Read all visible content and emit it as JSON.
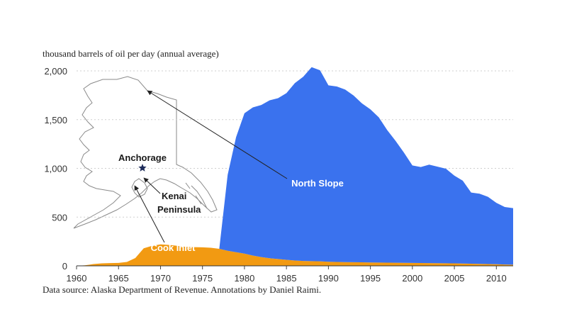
{
  "page": {
    "unit_label": "thousand barrels of oil per day (annual average)",
    "source_note": "Data source: Alaska Department of Revenue. Annotations by Daniel Raimi."
  },
  "colors": {
    "north_slope": "#3a72ee",
    "cook_inlet": "#f29a12",
    "text": "#222222"
  },
  "chart_data": {
    "type": "area",
    "stacked": true,
    "title": "",
    "xlabel": "",
    "ylabel": "thousand barrels of oil per day (annual average)",
    "xlim": [
      1960,
      2012
    ],
    "ylim": [
      0,
      2000
    ],
    "x_ticks": [
      1960,
      1965,
      1970,
      1975,
      1980,
      1985,
      1990,
      1995,
      2000,
      2005,
      2010
    ],
    "y_ticks": [
      0,
      500,
      1000,
      1500,
      2000
    ],
    "y_tick_labels": [
      "0",
      "500",
      "1,000",
      "1,500",
      "2,000"
    ],
    "grid": false,
    "x": [
      1960,
      1961,
      1962,
      1963,
      1964,
      1965,
      1966,
      1967,
      1968,
      1969,
      1970,
      1971,
      1972,
      1973,
      1974,
      1975,
      1976,
      1977,
      1978,
      1979,
      1980,
      1981,
      1982,
      1983,
      1984,
      1985,
      1986,
      1987,
      1988,
      1989,
      1990,
      1991,
      1992,
      1993,
      1994,
      1995,
      1996,
      1997,
      1998,
      1999,
      2000,
      2001,
      2002,
      2003,
      2004,
      2005,
      2006,
      2007,
      2008,
      2009,
      2010,
      2011,
      2012
    ],
    "series": [
      {
        "name": "Cook Inlet",
        "color": "#f29a12",
        "values": [
          0,
          5,
          18,
          25,
          28,
          30,
          40,
          80,
          180,
          205,
          220,
          215,
          205,
          195,
          192,
          190,
          185,
          175,
          155,
          140,
          125,
          105,
          90,
          78,
          70,
          62,
          55,
          50,
          48,
          46,
          42,
          40,
          38,
          37,
          36,
          35,
          34,
          33,
          32,
          31,
          30,
          29,
          28,
          27,
          26,
          25,
          24,
          22,
          20,
          18,
          16,
          14,
          12
        ]
      },
      {
        "name": "North Slope",
        "color": "#3a72ee",
        "values": [
          0,
          0,
          0,
          0,
          0,
          0,
          0,
          0,
          0,
          0,
          0,
          0,
          0,
          0,
          0,
          0,
          0,
          0,
          780,
          1180,
          1440,
          1520,
          1560,
          1620,
          1650,
          1710,
          1820,
          1890,
          1990,
          1960,
          1810,
          1800,
          1770,
          1710,
          1630,
          1570,
          1490,
          1360,
          1250,
          1130,
          1000,
          985,
          1010,
          990,
          970,
          900,
          850,
          730,
          720,
          690,
          630,
          590,
          580
        ]
      }
    ],
    "annotations": [
      "North Slope",
      "Cook Inlet",
      "Anchorage",
      "Kenai",
      "Peninsula"
    ]
  }
}
